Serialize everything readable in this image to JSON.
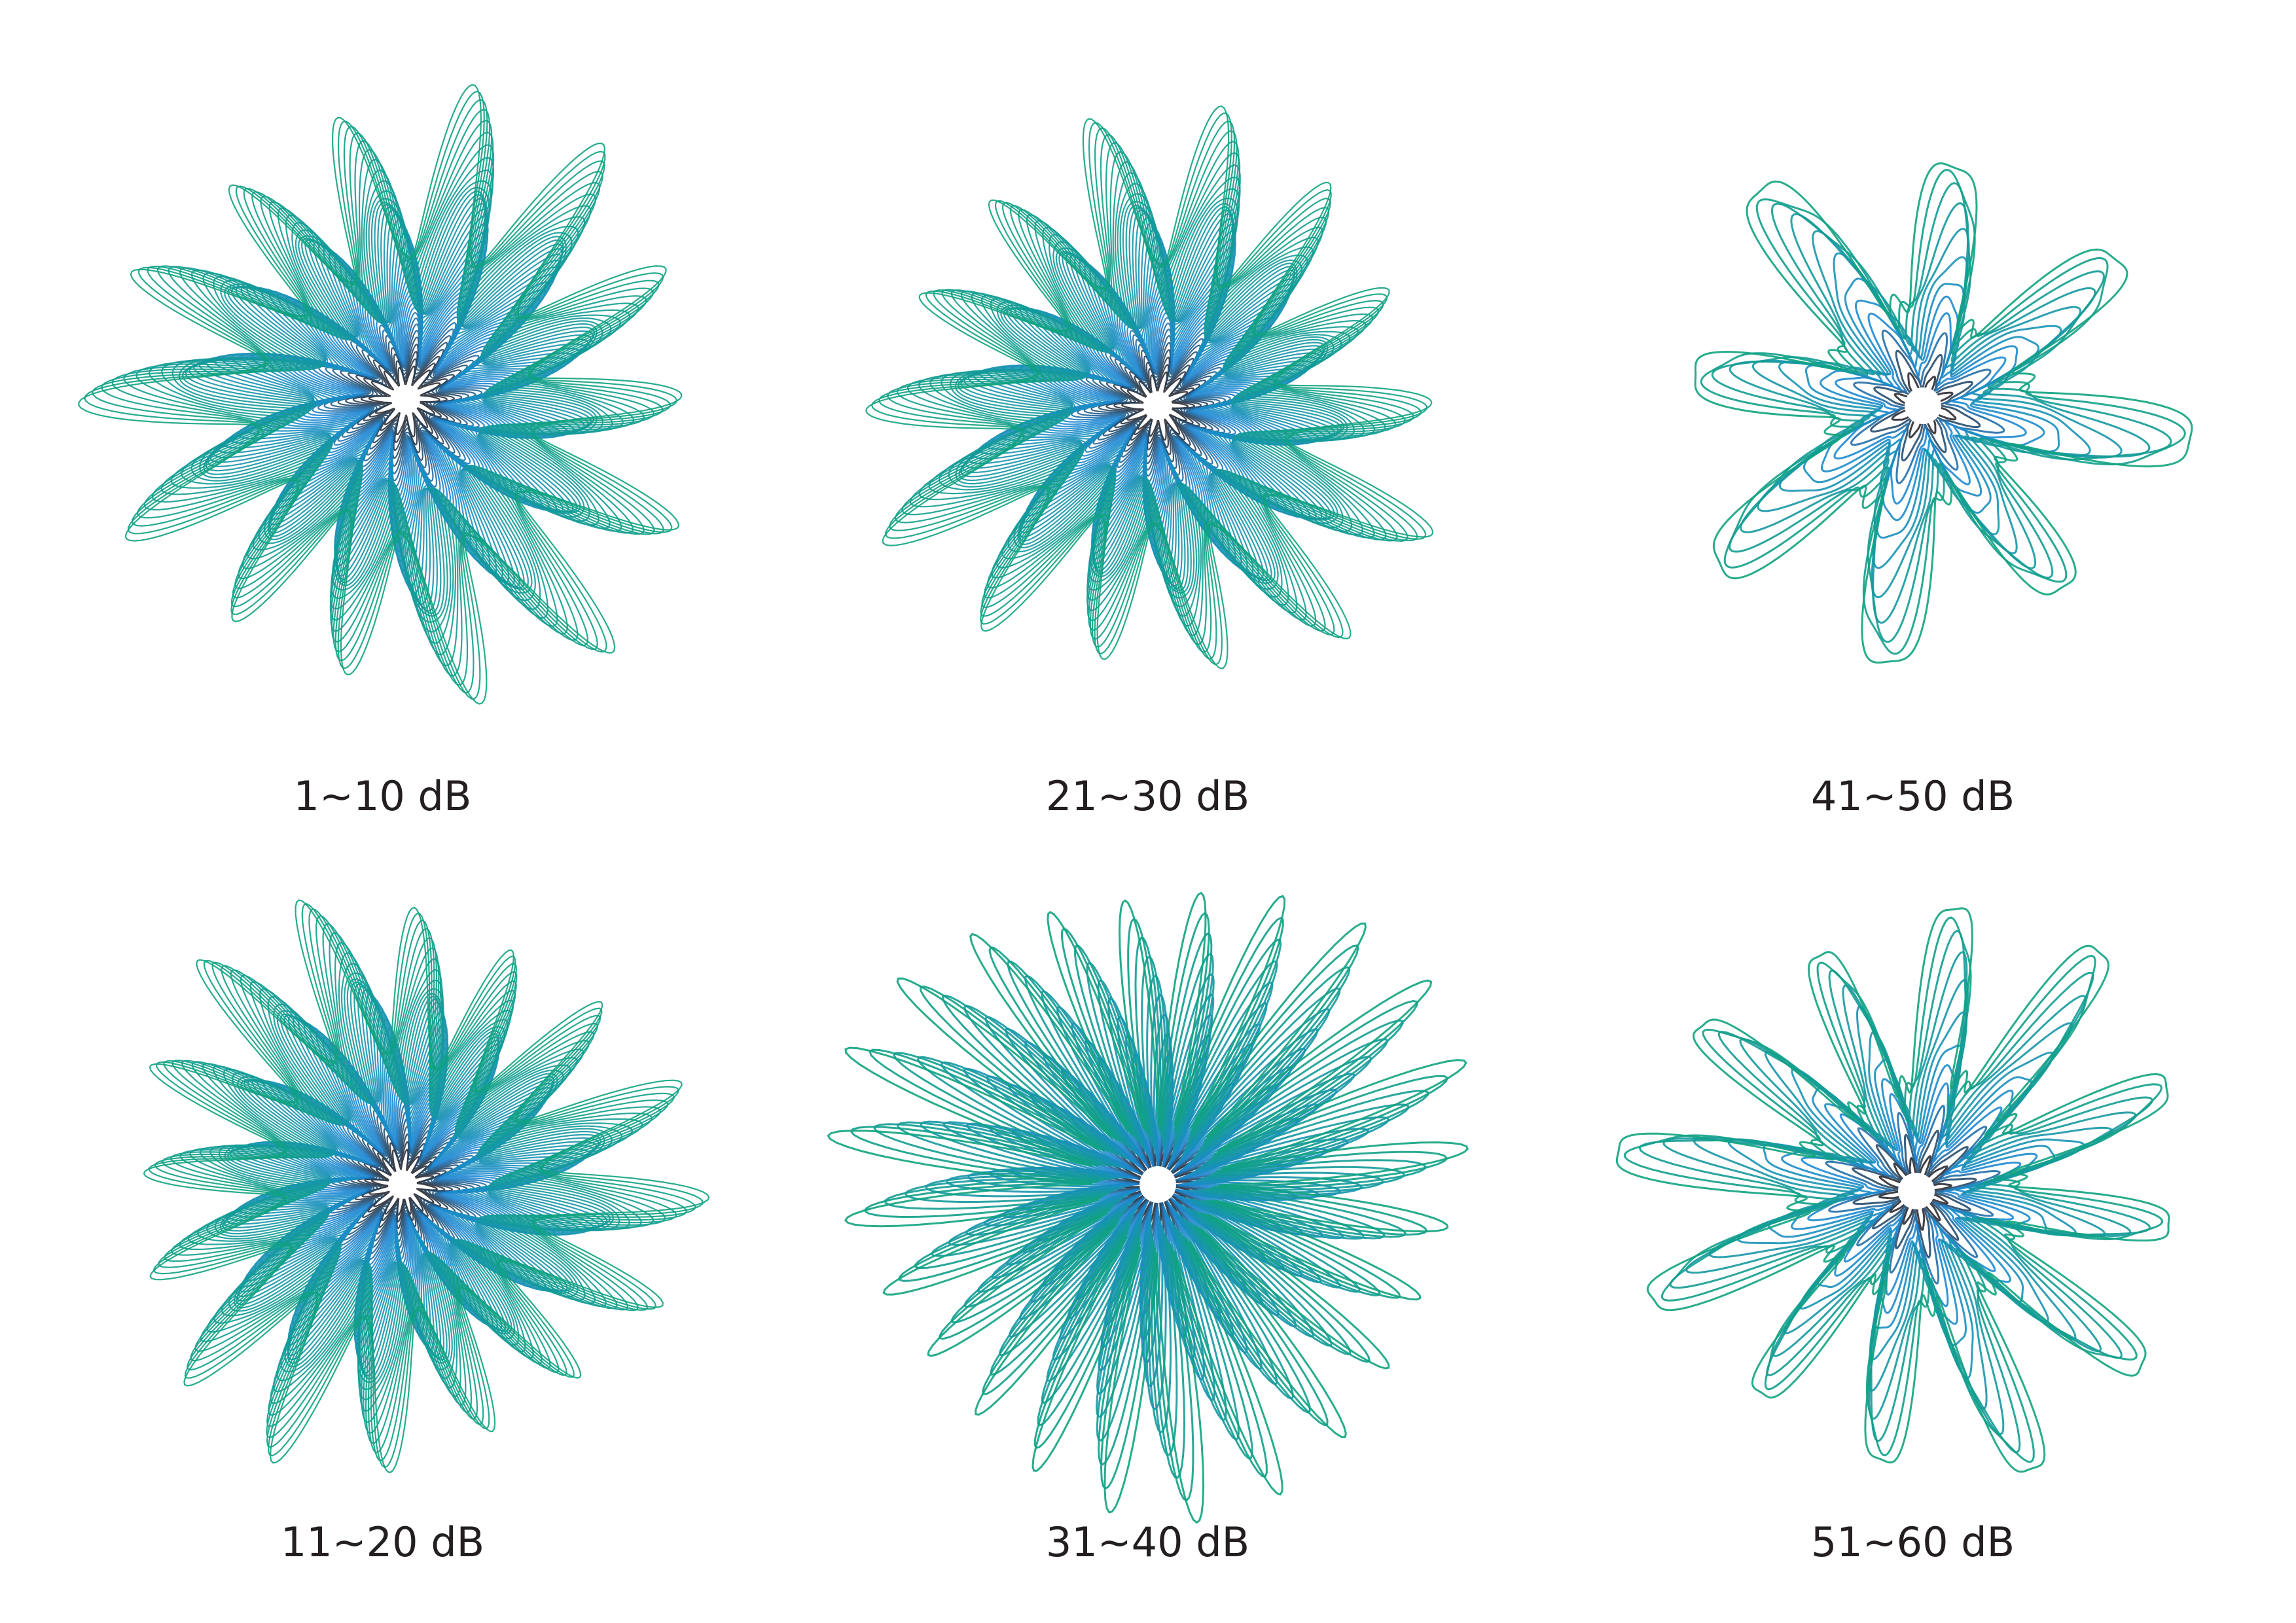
{
  "panels": [
    {
      "label": "1~10 dB",
      "petals": 14,
      "style": "dense",
      "spread": 0.55
    },
    {
      "label": "21~30 dB",
      "petals": 14,
      "style": "dense",
      "spread": 0.45
    },
    {
      "label": "41~50 dB",
      "petals": 8,
      "style": "web",
      "spread": 0.9
    },
    {
      "label": "11~20 dB",
      "petals": 16,
      "style": "dense",
      "spread": 0.5
    },
    {
      "label": "31~40 dB",
      "petals": 24,
      "style": "loops",
      "spread": 0.7
    },
    {
      "label": "51~60 dB",
      "petals": 12,
      "style": "web",
      "spread": 1.0
    }
  ],
  "colors": {
    "outer": "#0fa37f",
    "mid": "#1e88d6",
    "core": "#2b2b33",
    "caption": "#231f20"
  }
}
